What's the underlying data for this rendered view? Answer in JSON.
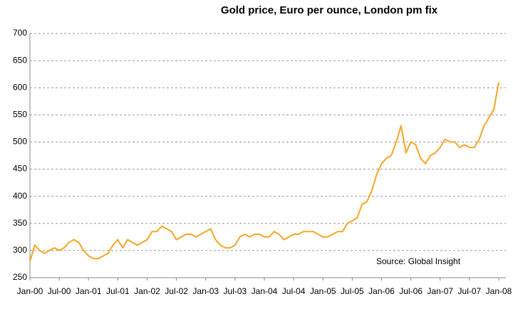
{
  "chart_data": {
    "type": "line",
    "title": "Gold price, Euro per ounce, London pm fix",
    "annotation": "Source: Global Insight",
    "categories": [
      "Jan-00",
      null,
      null,
      null,
      null,
      null,
      "Jul-00",
      null,
      null,
      null,
      null,
      null,
      "Jan-01",
      null,
      null,
      null,
      null,
      null,
      "Jul-01",
      null,
      null,
      null,
      null,
      null,
      "Jan-02",
      null,
      null,
      null,
      null,
      null,
      "Jul-02",
      null,
      null,
      null,
      null,
      null,
      "Jan-03",
      null,
      null,
      null,
      null,
      null,
      "Jul-03",
      null,
      null,
      null,
      null,
      null,
      "Jan-04",
      null,
      null,
      null,
      null,
      null,
      "Jul-04",
      null,
      null,
      null,
      null,
      null,
      "Jan-05",
      null,
      null,
      null,
      null,
      null,
      "Jul-05",
      null,
      null,
      null,
      null,
      null,
      "Jan-06",
      null,
      null,
      null,
      null,
      null,
      "Jul-06",
      null,
      null,
      null,
      null,
      null,
      "Jan-07",
      null,
      null,
      null,
      null,
      null,
      "Jul-07",
      null,
      null,
      null,
      null,
      null,
      "Jan-08"
    ],
    "series": [
      {
        "name": "Gold price",
        "color": "#f5a623",
        "values": [
          280,
          310,
          300,
          295,
          300,
          305,
          300,
          305,
          315,
          320,
          315,
          300,
          290,
          285,
          285,
          290,
          295,
          310,
          320,
          305,
          320,
          315,
          310,
          315,
          320,
          335,
          335,
          345,
          340,
          335,
          320,
          325,
          330,
          330,
          325,
          330,
          335,
          340,
          320,
          310,
          305,
          305,
          310,
          325,
          330,
          325,
          330,
          330,
          325,
          325,
          335,
          330,
          320,
          325,
          330,
          330,
          335,
          335,
          335,
          330,
          325,
          325,
          330,
          335,
          335,
          350,
          355,
          360,
          385,
          390,
          410,
          440,
          460,
          470,
          475,
          500,
          530,
          480,
          500,
          495,
          470,
          460,
          475,
          480,
          490,
          505,
          500,
          500,
          490,
          495,
          490,
          490,
          505,
          530,
          545,
          560,
          610
        ]
      }
    ],
    "ylim": [
      250,
      700
    ],
    "yticks": [
      250,
      300,
      350,
      400,
      450,
      500,
      550,
      600,
      650,
      700
    ],
    "grid": true
  }
}
